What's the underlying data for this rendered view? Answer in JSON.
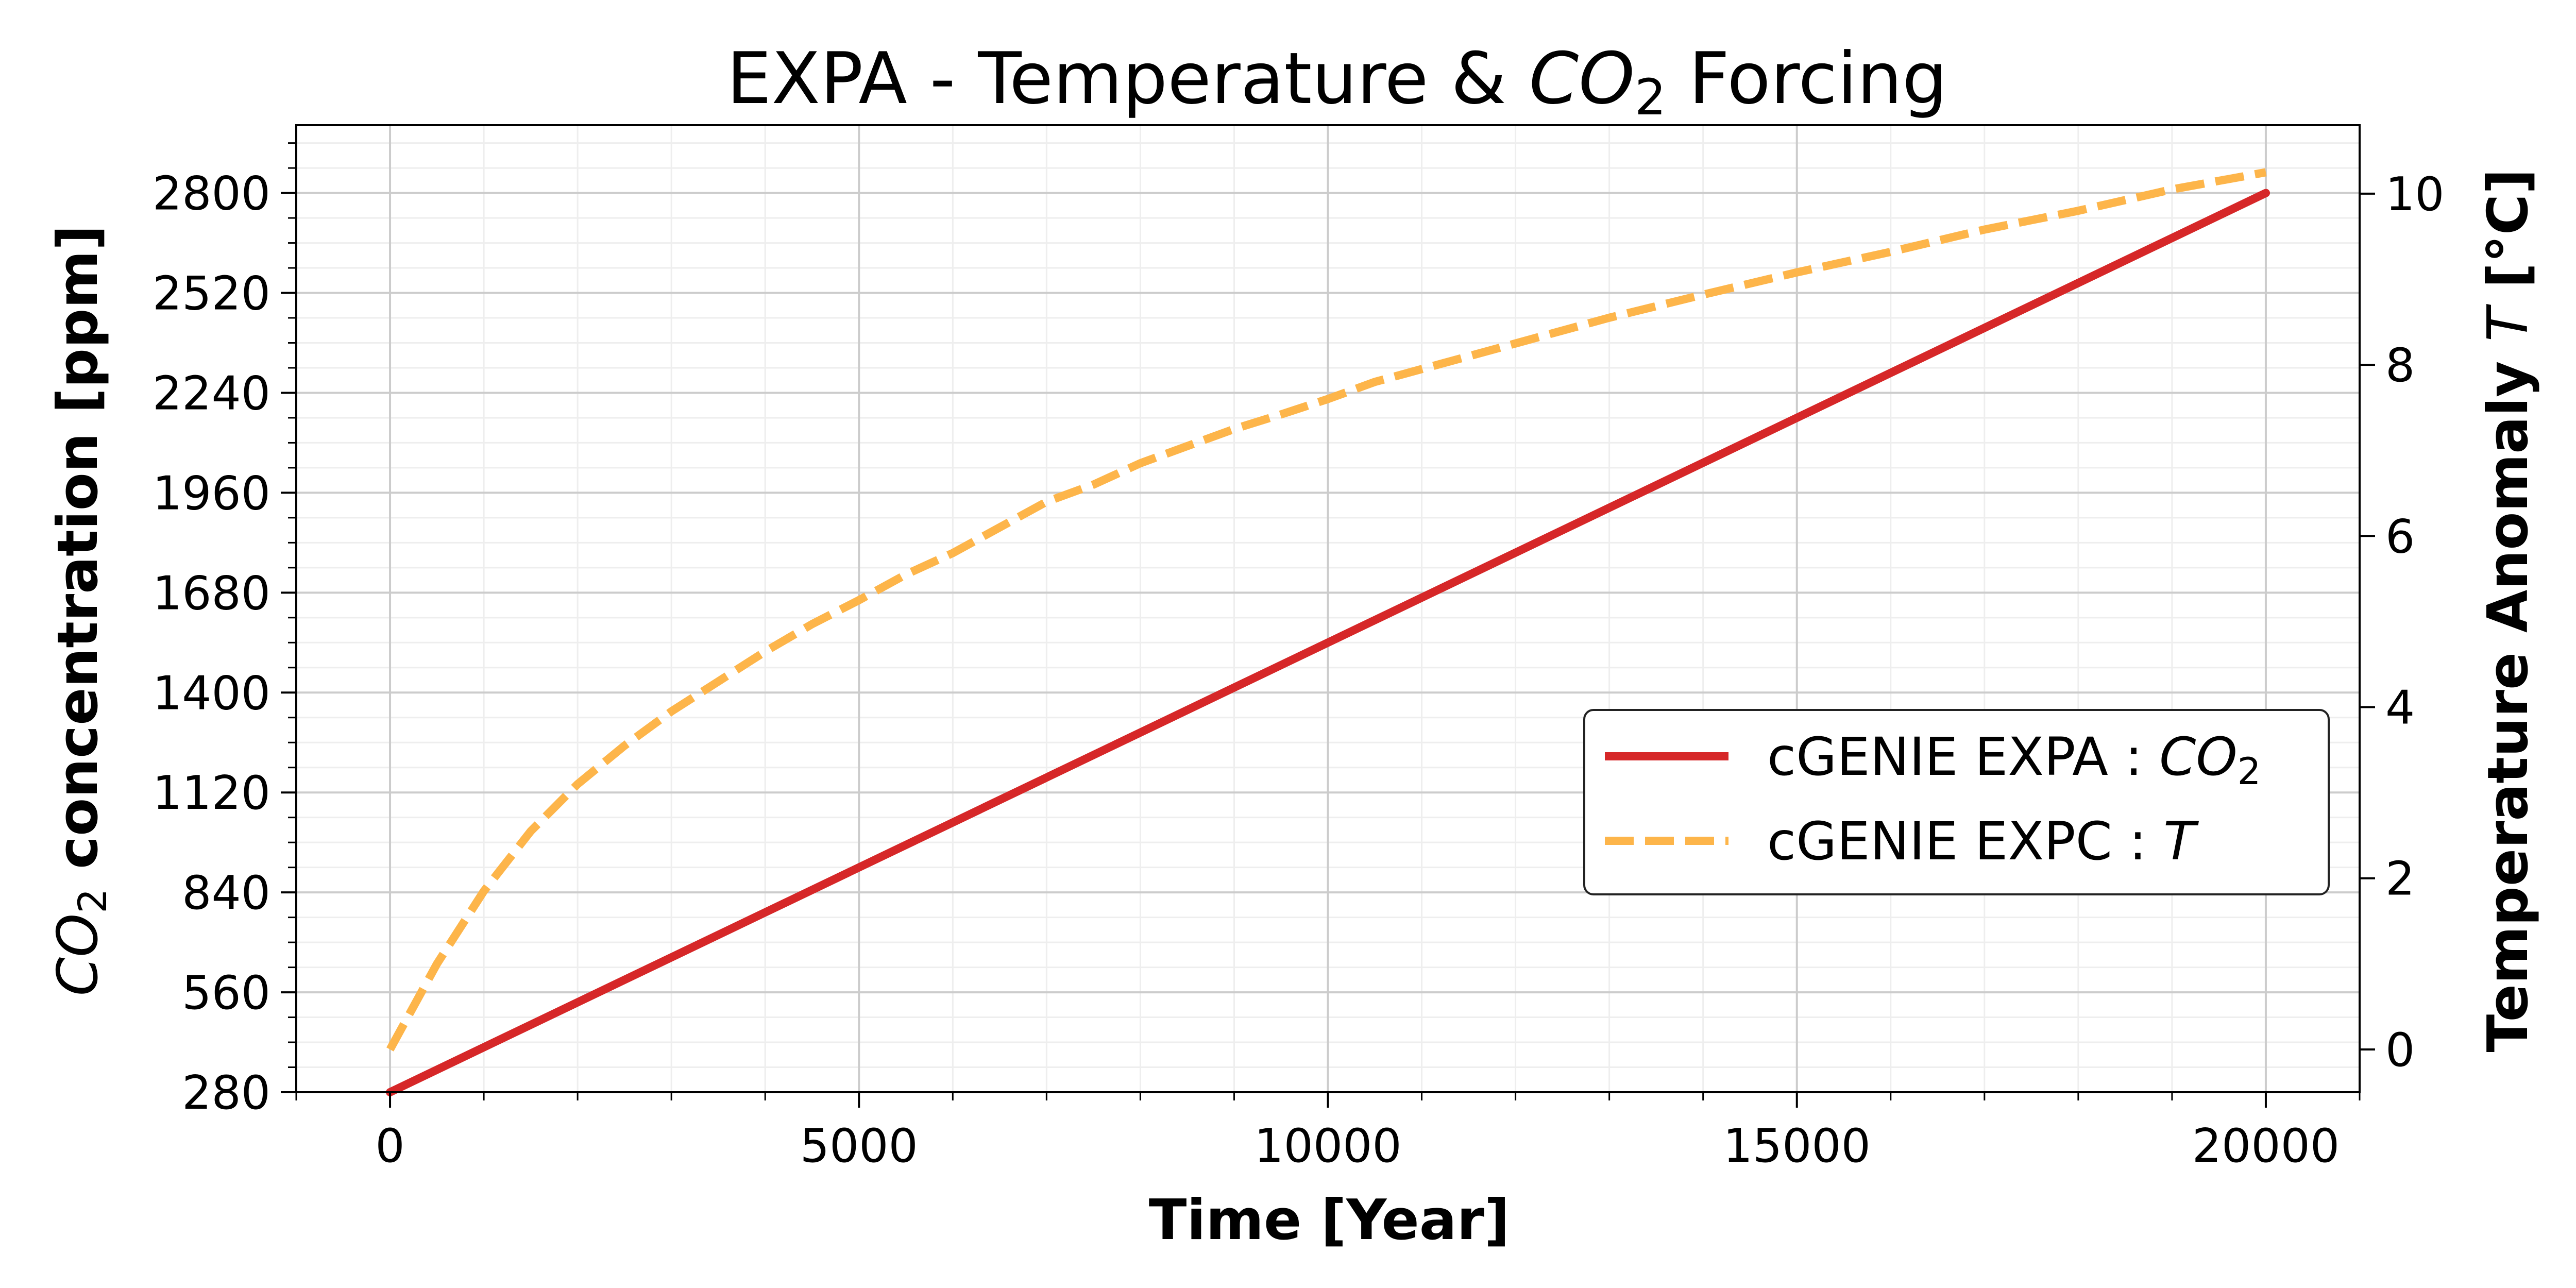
{
  "chart_data": {
    "type": "line",
    "title": {
      "pre": "EXPA - Temperature & ",
      "var": "CO",
      "sub": "2",
      "post": " Forcing"
    },
    "xlabel": "Time [Year]",
    "ylabel_left": {
      "var": "CO",
      "sub": "2",
      "post": " concentration [ppm]"
    },
    "ylabel_right": {
      "pre": "Temperature Anomaly ",
      "var": "T",
      "post": " [°C]"
    },
    "xlim": [
      -1000,
      21000
    ],
    "ylim_left": [
      280,
      2990
    ],
    "ylim_right": [
      -0.5,
      10.8
    ],
    "x_ticks": [
      0,
      5000,
      10000,
      15000,
      20000
    ],
    "x_tick_labels": [
      "0",
      "5000",
      "10000",
      "15000",
      "20000"
    ],
    "y_left_ticks": [
      280,
      560,
      840,
      1120,
      1400,
      1680,
      1960,
      2240,
      2520,
      2800
    ],
    "y_left_tick_labels": [
      "280",
      "560",
      "840",
      "1120",
      "1400",
      "1680",
      "1960",
      "2240",
      "2520",
      "2800"
    ],
    "y_right_ticks": [
      0,
      2,
      4,
      6,
      8,
      10
    ],
    "y_right_tick_labels": [
      "0",
      "2",
      "4",
      "6",
      "8",
      "10"
    ],
    "grid": true,
    "legend_position": "center-right",
    "series": [
      {
        "name": {
          "pre": "cGENIE EXPA : ",
          "var": "CO",
          "sub": "2"
        },
        "axis": "left",
        "color": "#d62728",
        "dash": "solid",
        "x": [
          0,
          20000
        ],
        "y": [
          280,
          2800
        ]
      },
      {
        "name": {
          "pre": "cGENIE EXPC : ",
          "var": "T",
          "sub": ""
        },
        "axis": "right",
        "color": "#fdb54a",
        "dash": "dashed",
        "x": [
          0,
          500,
          1000,
          1500,
          2000,
          2500,
          3000,
          3500,
          4000,
          4500,
          5000,
          5500,
          6000,
          6500,
          7000,
          7500,
          8000,
          8500,
          9000,
          9500,
          10000,
          10500,
          11000,
          12000,
          13000,
          14000,
          15000,
          16000,
          17000,
          18000,
          19000,
          20000
        ],
        "y": [
          0.0,
          1.0,
          1.85,
          2.55,
          3.1,
          3.55,
          3.95,
          4.3,
          4.65,
          4.97,
          5.25,
          5.55,
          5.8,
          6.1,
          6.4,
          6.6,
          6.85,
          7.05,
          7.25,
          7.42,
          7.6,
          7.8,
          7.95,
          8.25,
          8.55,
          8.82,
          9.08,
          9.32,
          9.58,
          9.8,
          10.05,
          10.25
        ]
      }
    ]
  }
}
